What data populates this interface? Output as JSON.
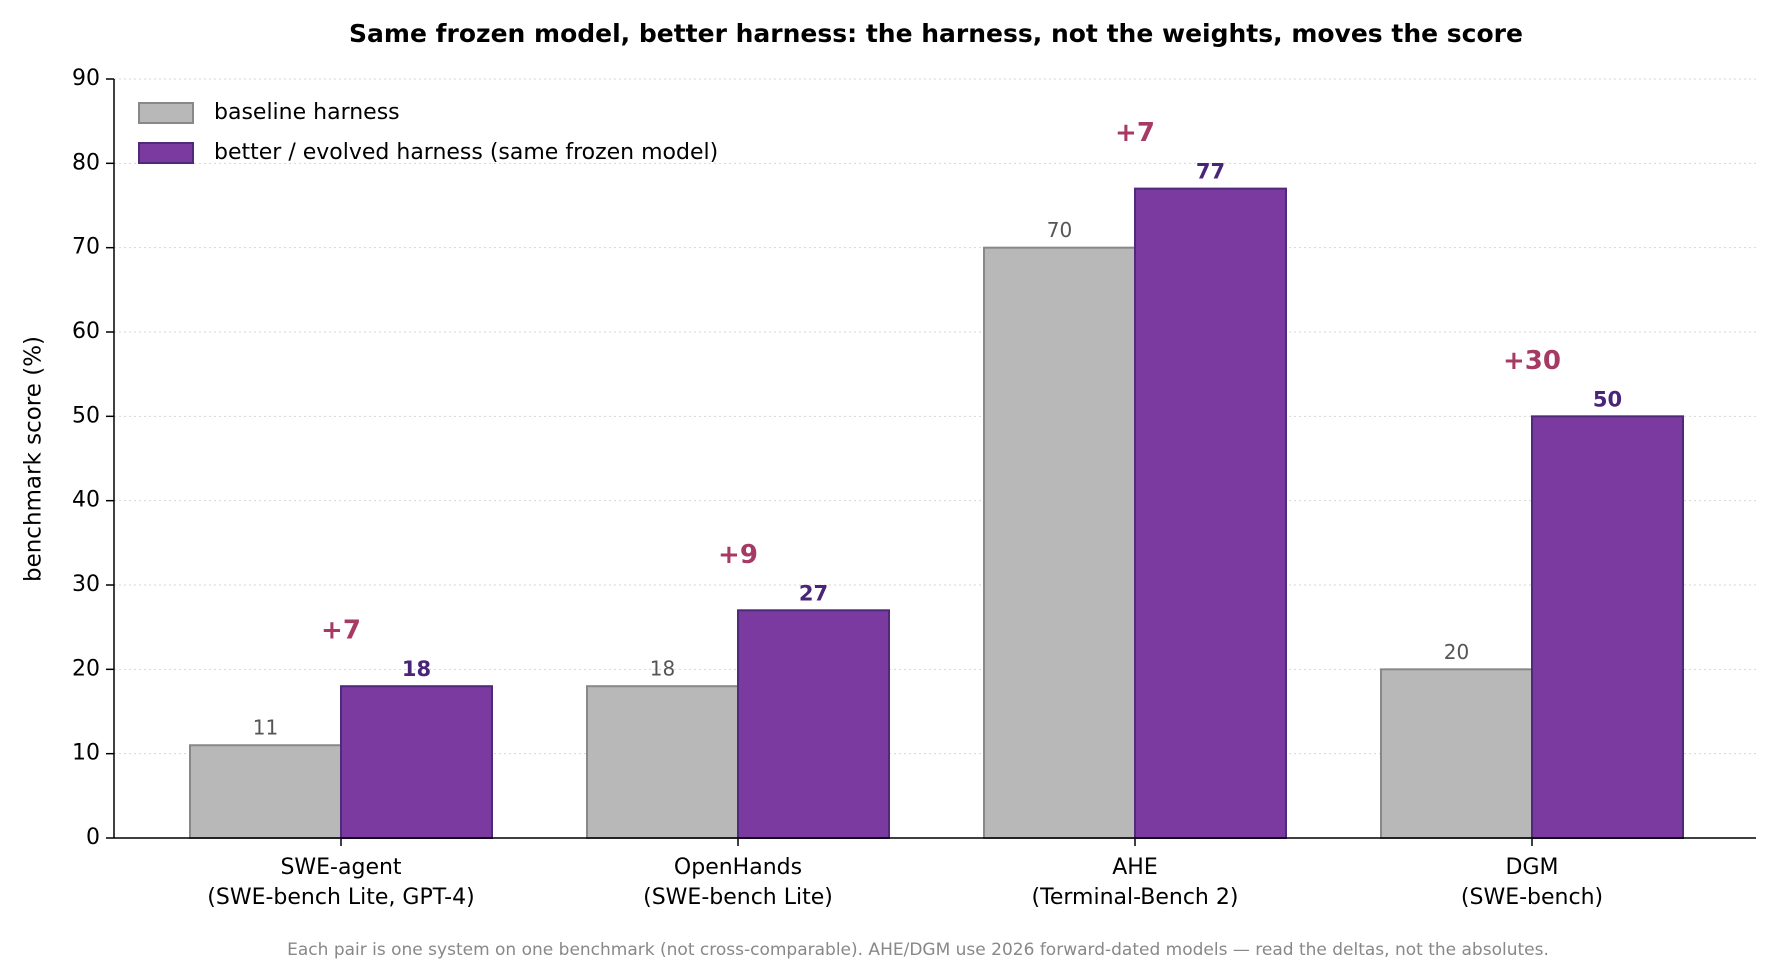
{
  "chart_data": {
    "type": "bar",
    "title": "Same frozen model, better harness: the harness, not the weights, moves the score",
    "ylabel": "benchmark score (%)",
    "footnote": "Each pair is one system on one benchmark (not cross-comparable). AHE/DGM use 2026 forward-dated models — read the deltas, not the absolutes.",
    "categories": [
      "SWE-agent\n(SWE-bench Lite, GPT-4)",
      "OpenHands\n(SWE-bench Lite)",
      "AHE\n(Terminal-Bench 2)",
      "DGM\n(SWE-bench)"
    ],
    "series": [
      {
        "name": "baseline harness",
        "color": "#b8b8b8",
        "edge": "#888888",
        "label_color": "#555555",
        "values": [
          11,
          18,
          70,
          20
        ]
      },
      {
        "name": "better / evolved harness (same frozen model)",
        "color": "#7a3aa0",
        "edge": "#4e2a78",
        "label_color": "#4a2478",
        "values": [
          18,
          27,
          77,
          50
        ]
      }
    ],
    "annotations": [
      "+7",
      "+9",
      "+7",
      "+30"
    ],
    "annotation_color": "#a63a64",
    "ylim": [
      0,
      90
    ],
    "yticks": [
      0,
      10,
      20,
      30,
      40,
      50,
      60,
      70,
      80,
      90
    ],
    "grid": true,
    "legend": "upper left"
  }
}
